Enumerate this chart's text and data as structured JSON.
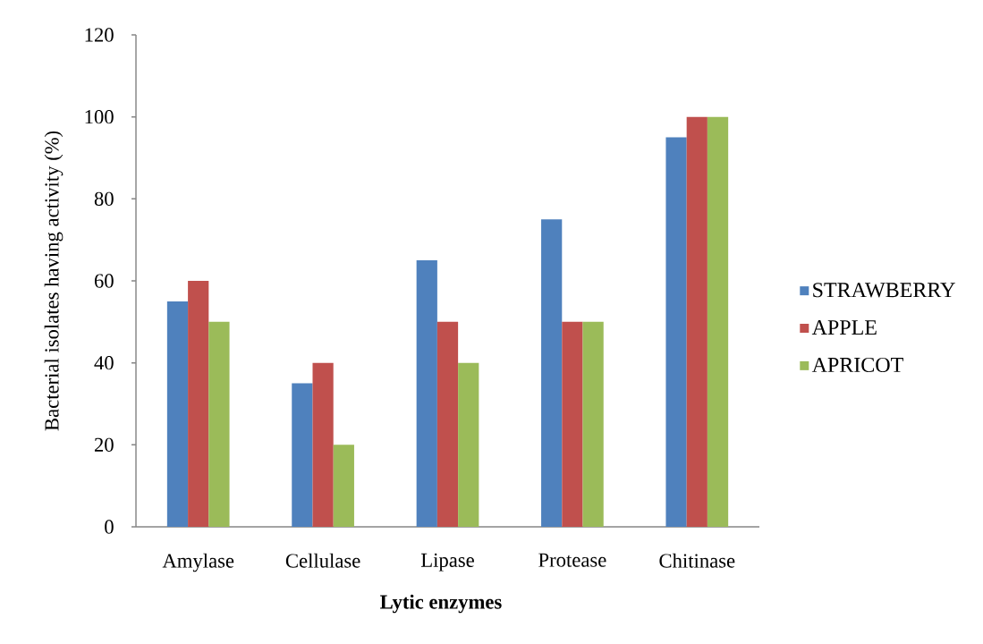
{
  "chart_data": {
    "type": "bar",
    "xlabel": "Lytic enzymes",
    "ylabel": "Bacterial isolates having activity (%)",
    "categories": [
      "Amylase",
      "Cellulase",
      "Lipase",
      "Protease",
      "Chitinase"
    ],
    "series": [
      {
        "name": "STRAWBERRY",
        "color": "#4f81bd",
        "values": [
          55,
          35,
          65,
          75,
          95
        ]
      },
      {
        "name": "APPLE",
        "color": "#c0504d",
        "values": [
          60,
          40,
          50,
          50,
          100
        ]
      },
      {
        "name": "APRICOT",
        "color": "#9bbb59",
        "values": [
          50,
          20,
          40,
          50,
          100
        ]
      }
    ],
    "ylim": [
      0,
      120
    ],
    "yticks": [
      0,
      20,
      40,
      60,
      80,
      100,
      120
    ],
    "legend": "right"
  }
}
